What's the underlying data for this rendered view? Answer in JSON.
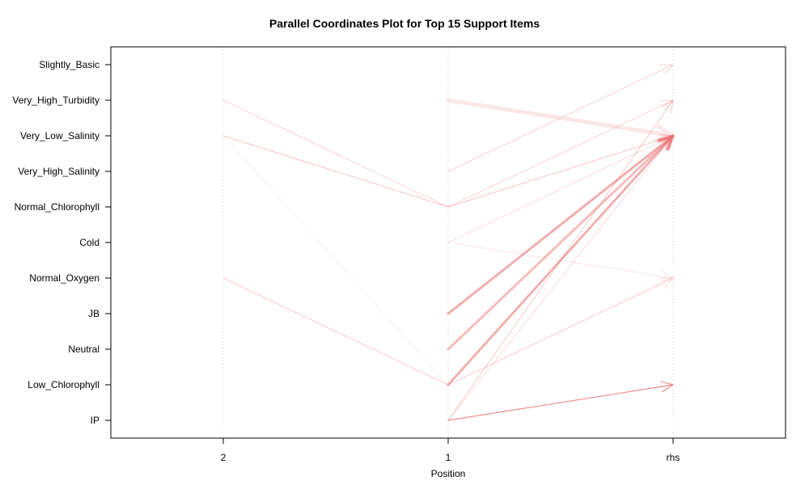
{
  "chart_data": {
    "type": "parallel-coordinates",
    "title": "Parallel Coordinates Plot for Top 15 Support Items",
    "xlabel": "Position",
    "ylabel": "",
    "x_categories": [
      "2",
      "1",
      "rhs"
    ],
    "y_categories": [
      "IP",
      "Low_Chlorophyll",
      "Neutral",
      "JB",
      "Normal_Oxygen",
      "Cold",
      "Normal_Chlorophyll",
      "Very_High_Salinity",
      "Very_Low_Salinity",
      "Very_High_Turbidity",
      "Slightly_Basic"
    ],
    "rules": [
      {
        "path": [
          "Very_High_Turbidity",
          "Normal_Chlorophyll",
          "Very_High_Turbidity"
        ],
        "width": 1,
        "opacity": 0.3
      },
      {
        "path": [
          "Very_Low_Salinity",
          "Normal_Chlorophyll",
          "Very_Low_Salinity"
        ],
        "width": 1,
        "opacity": 0.4
      },
      {
        "path": [
          "Very_Low_Salinity",
          "Low_Chlorophyll",
          "Normal_Oxygen"
        ],
        "width": 1,
        "opacity": 0.12
      },
      {
        "path": [
          "Normal_Oxygen",
          "Low_Chlorophyll",
          "Very_Low_Salinity"
        ],
        "width": 1,
        "opacity": 0.35
      },
      {
        "path": [
          null,
          "Very_High_Turbidity",
          "Very_Low_Salinity"
        ],
        "width": 5,
        "opacity": 0.16
      },
      {
        "path": [
          null,
          "Very_High_Salinity",
          "Slightly_Basic"
        ],
        "width": 1,
        "opacity": 0.3
      },
      {
        "path": [
          null,
          "Cold",
          "Very_Low_Salinity"
        ],
        "width": 1.5,
        "opacity": 0.18
      },
      {
        "path": [
          null,
          "Cold",
          "Normal_Oxygen"
        ],
        "width": 1.5,
        "opacity": 0.12
      },
      {
        "path": [
          null,
          "JB",
          "Very_Low_Salinity"
        ],
        "width": 3,
        "opacity": 0.55
      },
      {
        "path": [
          null,
          "Neutral",
          "Very_Low_Salinity"
        ],
        "width": 3,
        "opacity": 0.45
      },
      {
        "path": [
          null,
          "Low_Chlorophyll",
          "Very_Low_Salinity"
        ],
        "width": 3,
        "opacity": 0.45
      },
      {
        "path": [
          null,
          "Low_Chlorophyll",
          "Normal_Oxygen"
        ],
        "width": 2,
        "opacity": 0.13
      },
      {
        "path": [
          null,
          "IP",
          "Very_High_Turbidity"
        ],
        "width": 1,
        "opacity": 0.35
      },
      {
        "path": [
          null,
          "IP",
          "Very_Low_Salinity"
        ],
        "width": 1,
        "opacity": 0.25
      },
      {
        "path": [
          null,
          "IP",
          "Low_Chlorophyll"
        ],
        "width": 1.2,
        "opacity": 0.8
      }
    ],
    "line_color": "#e86a6a",
    "grid": "dotted vertical guides at each position",
    "legend": "none"
  }
}
